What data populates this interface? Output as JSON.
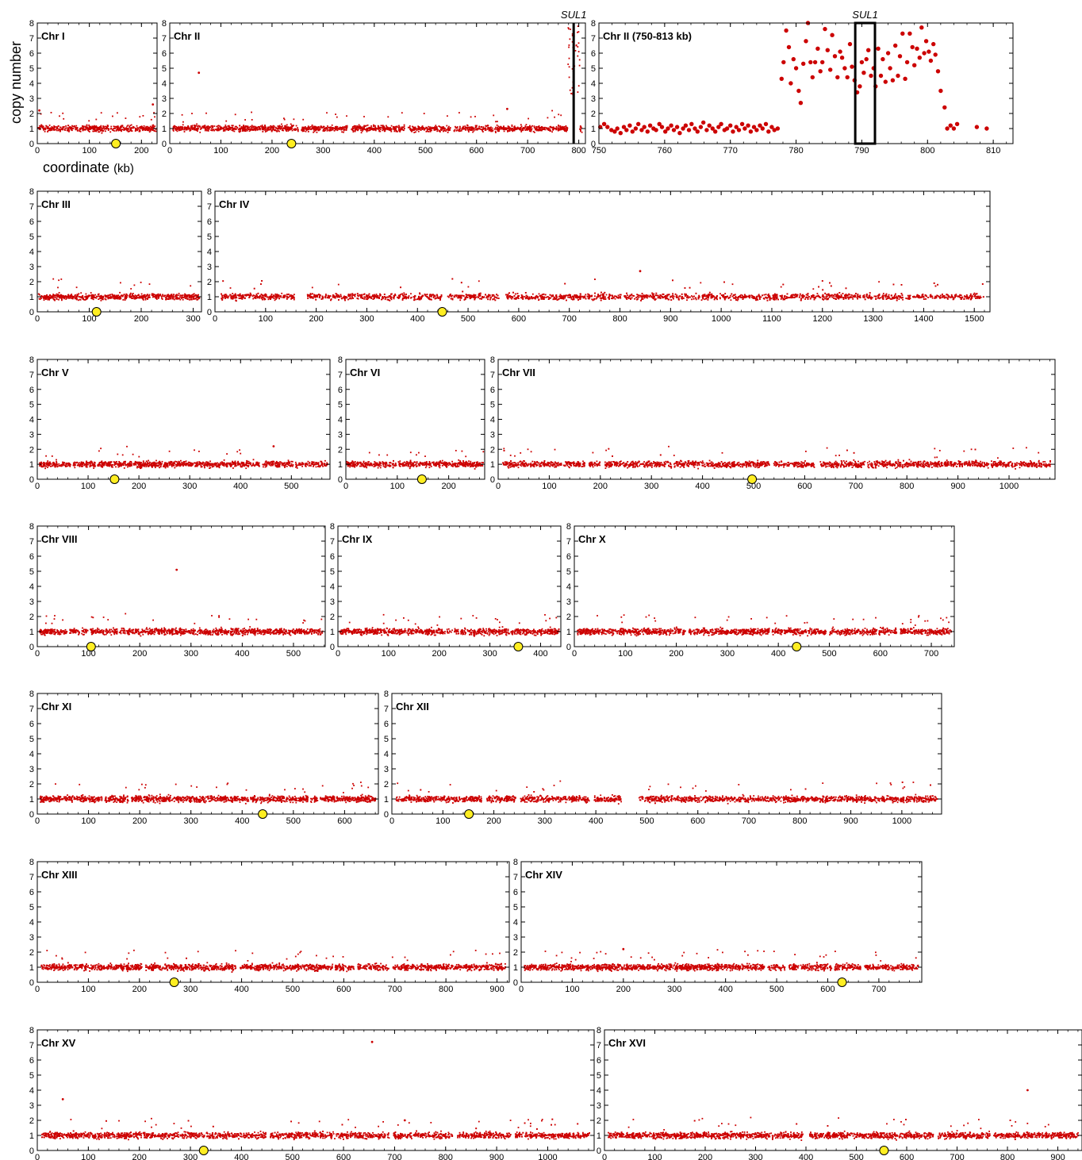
{
  "figure": {
    "ylabel": "copy number",
    "xlabel_main": "coordinate",
    "xlabel_unit": "(kb)",
    "gene_label": "SUL1"
  },
  "colors": {
    "points": "#cc0000",
    "centromere_fill": "#ffee22",
    "frame": "#000000"
  },
  "chart_data": [
    {
      "type": "scatter",
      "title": "Chr I",
      "xlim": [
        0,
        230
      ],
      "ylim": [
        0,
        8
      ],
      "xticks": [
        0,
        100,
        200
      ],
      "yticks": [
        0,
        1,
        2,
        3,
        4,
        5,
        6,
        7,
        8
      ],
      "baseline": 1,
      "centromere_x": 151,
      "outliers": [
        [
          222,
          2.6
        ],
        [
          4,
          2.2
        ]
      ]
    },
    {
      "type": "scatter",
      "title": "Chr II",
      "xlim": [
        0,
        813
      ],
      "ylim": [
        0,
        8
      ],
      "xticks": [
        0,
        100,
        200,
        300,
        400,
        500,
        600,
        700,
        800
      ],
      "yticks": [
        0,
        1,
        2,
        3,
        4,
        5,
        6,
        7,
        8
      ],
      "baseline": 1,
      "centromere_x": 238,
      "amplified_region": [
        778,
        802
      ],
      "annotation": {
        "text": "SUL1",
        "x": 790
      },
      "outliers": [
        [
          57,
          4.7
        ],
        [
          660,
          2.3
        ]
      ]
    },
    {
      "type": "scatter",
      "title": "Chr II (750-813 kb)",
      "xlim": [
        750,
        813
      ],
      "ylim": [
        0,
        8
      ],
      "xticks": [
        750,
        760,
        770,
        780,
        790,
        800,
        810
      ],
      "yticks": [
        0,
        1,
        2,
        3,
        4,
        5,
        6,
        7,
        8
      ],
      "annotation": {
        "text": "SUL1",
        "box": [
          789,
          792
        ]
      },
      "points": [
        [
          750.2,
          1.1
        ],
        [
          750.8,
          1.3
        ],
        [
          751.3,
          1.1
        ],
        [
          751.9,
          0.9
        ],
        [
          752.4,
          0.8
        ],
        [
          752.8,
          1.0
        ],
        [
          753.3,
          0.7
        ],
        [
          753.8,
          1.1
        ],
        [
          754.2,
          0.9
        ],
        [
          754.7,
          1.2
        ],
        [
          755.1,
          0.8
        ],
        [
          755.6,
          1.0
        ],
        [
          756.0,
          1.3
        ],
        [
          756.5,
          0.9
        ],
        [
          756.9,
          1.1
        ],
        [
          757.4,
          0.8
        ],
        [
          757.8,
          1.2
        ],
        [
          758.3,
          1.0
        ],
        [
          758.7,
          0.9
        ],
        [
          759.2,
          1.3
        ],
        [
          759.6,
          1.1
        ],
        [
          760.1,
          0.8
        ],
        [
          760.5,
          1.0
        ],
        [
          761.0,
          1.2
        ],
        [
          761.4,
          0.9
        ],
        [
          761.9,
          1.1
        ],
        [
          762.3,
          0.7
        ],
        [
          762.8,
          1.0
        ],
        [
          763.2,
          1.2
        ],
        [
          763.7,
          0.9
        ],
        [
          764.1,
          1.3
        ],
        [
          764.6,
          1.0
        ],
        [
          765.0,
          0.8
        ],
        [
          765.5,
          1.1
        ],
        [
          765.9,
          1.4
        ],
        [
          766.4,
          0.9
        ],
        [
          766.8,
          1.2
        ],
        [
          767.3,
          1.0
        ],
        [
          767.7,
          0.8
        ],
        [
          768.2,
          1.1
        ],
        [
          768.6,
          1.3
        ],
        [
          769.1,
          0.9
        ],
        [
          769.5,
          1.0
        ],
        [
          770.0,
          1.2
        ],
        [
          770.4,
          0.8
        ],
        [
          770.9,
          1.1
        ],
        [
          771.3,
          0.9
        ],
        [
          771.8,
          1.3
        ],
        [
          772.2,
          1.0
        ],
        [
          772.7,
          1.2
        ],
        [
          773.1,
          0.8
        ],
        [
          773.6,
          1.1
        ],
        [
          774.0,
          0.9
        ],
        [
          774.5,
          1.2
        ],
        [
          774.9,
          1.0
        ],
        [
          775.4,
          1.3
        ],
        [
          775.8,
          0.8
        ],
        [
          776.3,
          1.1
        ],
        [
          776.7,
          0.9
        ],
        [
          777.2,
          1.0
        ],
        [
          777.8,
          4.3
        ],
        [
          778.1,
          5.4
        ],
        [
          778.5,
          7.5
        ],
        [
          778.9,
          6.4
        ],
        [
          779.2,
          4.0
        ],
        [
          779.6,
          5.6
        ],
        [
          780.0,
          5.0
        ],
        [
          780.4,
          3.5
        ],
        [
          780.7,
          2.7
        ],
        [
          781.1,
          5.3
        ],
        [
          781.5,
          6.8
        ],
        [
          781.8,
          8.0
        ],
        [
          782.2,
          5.4
        ],
        [
          782.5,
          4.4
        ],
        [
          782.9,
          5.4
        ],
        [
          783.3,
          6.3
        ],
        [
          783.7,
          4.8
        ],
        [
          784.0,
          5.4
        ],
        [
          784.4,
          7.6
        ],
        [
          784.8,
          6.2
        ],
        [
          785.2,
          4.9
        ],
        [
          785.5,
          7.2
        ],
        [
          785.9,
          5.8
        ],
        [
          786.3,
          4.4
        ],
        [
          786.7,
          6.1
        ],
        [
          787.0,
          5.7
        ],
        [
          787.4,
          5.0
        ],
        [
          787.8,
          4.4
        ],
        [
          788.2,
          6.6
        ],
        [
          788.5,
          5.1
        ],
        [
          788.9,
          4.2
        ],
        [
          789.3,
          3.4
        ],
        [
          789.7,
          3.8
        ],
        [
          790.0,
          5.4
        ],
        [
          790.3,
          4.7
        ],
        [
          790.7,
          5.6
        ],
        [
          791.0,
          6.2
        ],
        [
          791.4,
          4.5
        ],
        [
          791.8,
          5.0
        ],
        [
          792.1,
          3.8
        ],
        [
          792.5,
          6.3
        ],
        [
          792.9,
          4.5
        ],
        [
          793.2,
          5.6
        ],
        [
          793.6,
          4.1
        ],
        [
          794.0,
          6.0
        ],
        [
          794.3,
          5.0
        ],
        [
          794.7,
          4.2
        ],
        [
          795.1,
          6.5
        ],
        [
          795.5,
          4.5
        ],
        [
          795.8,
          5.8
        ],
        [
          796.2,
          7.3
        ],
        [
          796.6,
          4.3
        ],
        [
          796.9,
          5.4
        ],
        [
          797.3,
          7.3
        ],
        [
          797.7,
          6.4
        ],
        [
          798.0,
          5.2
        ],
        [
          798.4,
          6.3
        ],
        [
          798.8,
          5.7
        ],
        [
          799.1,
          7.7
        ],
        [
          799.5,
          6.0
        ],
        [
          799.8,
          6.8
        ],
        [
          800.2,
          6.1
        ],
        [
          800.5,
          5.5
        ],
        [
          800.9,
          6.6
        ],
        [
          801.2,
          5.9
        ],
        [
          801.6,
          4.8
        ],
        [
          802.0,
          3.5
        ],
        [
          802.6,
          2.4
        ],
        [
          803.0,
          1.0
        ],
        [
          803.5,
          1.2
        ],
        [
          804.0,
          1.0
        ],
        [
          804.5,
          1.3
        ],
        [
          807.5,
          1.1
        ],
        [
          809.0,
          1.0
        ]
      ]
    },
    {
      "type": "scatter",
      "title": "Chr III",
      "xlim": [
        0,
        316
      ],
      "ylim": [
        0,
        8
      ],
      "xticks": [
        0,
        100,
        200,
        300
      ],
      "yticks": [
        0,
        1,
        2,
        3,
        4,
        5,
        6,
        7,
        8
      ],
      "baseline": 1,
      "centromere_x": 114,
      "outliers": []
    },
    {
      "type": "scatter",
      "title": "Chr IV",
      "xlim": [
        0,
        1531
      ],
      "ylim": [
        0,
        8
      ],
      "xticks": [
        0,
        100,
        200,
        300,
        400,
        500,
        600,
        700,
        800,
        900,
        1000,
        1100,
        1200,
        1300,
        1400,
        1500
      ],
      "yticks": [
        0,
        1,
        2,
        3,
        4,
        5,
        6,
        7,
        8
      ],
      "baseline": 1,
      "centromere_x": 449,
      "outliers": [
        [
          840,
          2.7
        ]
      ]
    },
    {
      "type": "scatter",
      "title": "Chr V",
      "xlim": [
        0,
        576
      ],
      "ylim": [
        0,
        8
      ],
      "xticks": [
        0,
        100,
        200,
        300,
        400,
        500
      ],
      "yticks": [
        0,
        1,
        2,
        3,
        4,
        5,
        6,
        7,
        8
      ],
      "baseline": 1,
      "centromere_x": 152,
      "outliers": [
        [
          465,
          2.2
        ]
      ]
    },
    {
      "type": "scatter",
      "title": "Chr VI",
      "xlim": [
        0,
        270
      ],
      "ylim": [
        0,
        8
      ],
      "xticks": [
        0,
        100,
        200
      ],
      "yticks": [
        0,
        1,
        2,
        3,
        4,
        5,
        6,
        7,
        8
      ],
      "baseline": 1,
      "centromere_x": 148,
      "outliers": []
    },
    {
      "type": "scatter",
      "title": "Chr VII",
      "xlim": [
        0,
        1090
      ],
      "ylim": [
        0,
        8
      ],
      "xticks": [
        0,
        100,
        200,
        300,
        400,
        500,
        600,
        700,
        800,
        900,
        1000
      ],
      "yticks": [
        0,
        1,
        2,
        3,
        4,
        5,
        6,
        7,
        8
      ],
      "baseline": 1,
      "centromere_x": 497,
      "outliers": []
    },
    {
      "type": "scatter",
      "title": "Chr VIII",
      "xlim": [
        0,
        562
      ],
      "ylim": [
        0,
        8
      ],
      "xticks": [
        0,
        100,
        200,
        300,
        400,
        500
      ],
      "yticks": [
        0,
        1,
        2,
        3,
        4,
        5,
        6,
        7,
        8
      ],
      "baseline": 1,
      "centromere_x": 105,
      "outliers": [
        [
          272,
          5.1
        ]
      ]
    },
    {
      "type": "scatter",
      "title": "Chr IX",
      "xlim": [
        0,
        440
      ],
      "ylim": [
        0,
        8
      ],
      "xticks": [
        0,
        100,
        200,
        300,
        400
      ],
      "yticks": [
        0,
        1,
        2,
        3,
        4,
        5,
        6,
        7,
        8
      ],
      "baseline": 1,
      "centromere_x": 356,
      "outliers": []
    },
    {
      "type": "scatter",
      "title": "Chr X",
      "xlim": [
        0,
        745
      ],
      "ylim": [
        0,
        8
      ],
      "xticks": [
        0,
        100,
        200,
        300,
        400,
        500,
        600,
        700
      ],
      "yticks": [
        0,
        1,
        2,
        3,
        4,
        5,
        6,
        7,
        8
      ],
      "baseline": 1,
      "centromere_x": 436,
      "outliers": []
    },
    {
      "type": "scatter",
      "title": "Chr XI",
      "xlim": [
        0,
        666
      ],
      "ylim": [
        0,
        8
      ],
      "xticks": [
        0,
        100,
        200,
        300,
        400,
        500,
        600
      ],
      "yticks": [
        0,
        1,
        2,
        3,
        4,
        5,
        6,
        7,
        8
      ],
      "baseline": 1,
      "centromere_x": 440,
      "outliers": []
    },
    {
      "type": "scatter",
      "title": "Chr XII",
      "xlim": [
        0,
        1078
      ],
      "ylim": [
        0,
        8
      ],
      "xticks": [
        0,
        100,
        200,
        300,
        400,
        500,
        600,
        700,
        800,
        900,
        1000
      ],
      "yticks": [
        0,
        1,
        2,
        3,
        4,
        5,
        6,
        7,
        8
      ],
      "baseline": 1,
      "centromere_x": 151,
      "outliers": [],
      "gap": [
        455,
        485
      ]
    },
    {
      "type": "scatter",
      "title": "Chr XIII",
      "xlim": [
        0,
        924
      ],
      "ylim": [
        0,
        8
      ],
      "xticks": [
        0,
        100,
        200,
        300,
        400,
        500,
        600,
        700,
        800,
        900
      ],
      "yticks": [
        0,
        1,
        2,
        3,
        4,
        5,
        6,
        7,
        8
      ],
      "baseline": 1,
      "centromere_x": 268,
      "outliers": []
    },
    {
      "type": "scatter",
      "title": "Chr XIV",
      "xlim": [
        0,
        784
      ],
      "ylim": [
        0,
        8
      ],
      "xticks": [
        0,
        100,
        200,
        300,
        400,
        500,
        600,
        700
      ],
      "yticks": [
        0,
        1,
        2,
        3,
        4,
        5,
        6,
        7,
        8
      ],
      "baseline": 1,
      "centromere_x": 628,
      "outliers": [
        [
          200,
          2.2
        ]
      ]
    },
    {
      "type": "scatter",
      "title": "Chr XV",
      "xlim": [
        0,
        1091
      ],
      "ylim": [
        0,
        8
      ],
      "xticks": [
        0,
        100,
        200,
        300,
        400,
        500,
        600,
        700,
        800,
        900,
        1000
      ],
      "yticks": [
        0,
        1,
        2,
        3,
        4,
        5,
        6,
        7,
        8
      ],
      "baseline": 1,
      "centromere_x": 326,
      "outliers": [
        [
          50,
          3.4
        ],
        [
          656,
          7.2
        ],
        [
          720,
          2.0
        ]
      ]
    },
    {
      "type": "scatter",
      "title": "Chr XVI",
      "xlim": [
        0,
        948
      ],
      "ylim": [
        0,
        8
      ],
      "xticks": [
        0,
        100,
        200,
        300,
        400,
        500,
        600,
        700,
        800,
        900
      ],
      "yticks": [
        0,
        1,
        2,
        3,
        4,
        5,
        6,
        7,
        8
      ],
      "baseline": 1,
      "centromere_x": 555,
      "outliers": [
        [
          840,
          4.0
        ]
      ]
    }
  ]
}
